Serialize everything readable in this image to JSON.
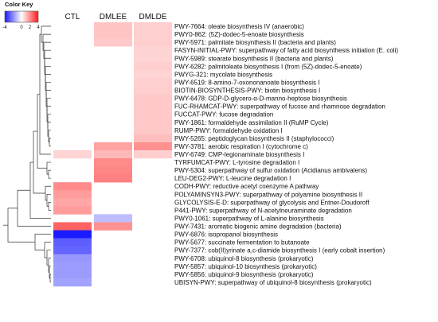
{
  "chart_data": {
    "type": "heatmap",
    "color_key": {
      "title": "Color Key",
      "ticks": [
        "-4",
        "0",
        "2",
        "4"
      ],
      "tick_values": [
        -4,
        0,
        2,
        4
      ],
      "range": [
        -4,
        4
      ],
      "colors": {
        "low": "#1a1aff",
        "mid": "#ffffff",
        "high": "#ff1a1a"
      }
    },
    "columns": [
      "CTL",
      "DMLEE",
      "DMLDE"
    ],
    "rows": [
      "PWY-7664: oleate biosynthesis IV (anaerobic)",
      "PWY0-862: (5Z)-dodec-5-enoate biosynthesis",
      "PWY-5971: palmitate biosynthesis II (bacteria and plants)",
      "FASYN-INITIAL-PWY: superpathway of fatty acid biosynthesis initiation (E. coli)",
      "PWY-5989: stearate biosynthesis II (bacteria and plants)",
      "PWY-6282: palmitoleate biosynthesis I (from (5Z)-dodec-5-enoate)",
      "PWYG-321: mycolate biosynthesis",
      "PWY-6519: 8-amino-7-oxononanoate biosynthesis I",
      "BIOTIN-BIOSYNTHESIS-PWY: biotin biosynthesis I",
      "PWY-6478: GDP-D-glycero-&alpha;-D-manno-heptose biosynthesis",
      "FUC-RHAMCAT-PWY: superpathway of fucose and rhamnose degradation",
      "FUCCAT-PWY: fucose degradation",
      "PWY-1861: formaldehyde assimilation II (RuMP Cycle)",
      "RUMP-PWY: formaldehyde oxidation I",
      "PWY-5265: peptidoglycan biosynthesis II (staphylococci)",
      "PWY-3781: aerobic respiration I (cytochrome c)",
      "PWY-6749: CMP-legionaminate biosynthesis I",
      "TYRFUMCAT-PWY: L-tyrosine degradation I",
      "PWY-5304: superpathway of sulfur oxidation (Acidianus ambivalens)",
      "LEU-DEG2-PWY: L-leucine degradation I",
      "CODH-PWY: reductive acetyl coenzyme A pathway",
      "POLYAMINSYN3-PWY: superpathway of polyamine biosynthesis II",
      "GLYCOLYSIS-E-D: superpathway of glycolysis and Entner-Doudoroff",
      "P441-PWY: superpathway of N-acetylneuraminate degradation",
      "PWY0-1061: superpathway of L-alanine biosynthesis",
      "PWY-7431: aromatic biogenic amine degradation (bacteria)",
      "PWY-6876: isopropanol biosynthesis",
      "PWY-5677: succinate fermentation to butanoate",
      "PWY-7377: cob(II)yrinate a,c-diamide biosynthesis I (early cobalt insertion)",
      "PWY-6708: ubiquinol-8 biosynthesis (prokaryotic)",
      "PWY-5857: ubiquinol-10 biosynthesis (prokaryotic)",
      "PWY-5856: ubiquinol-9 biosynthesis (prokaryotic)",
      "UBISYN-PWY: superpathway of ubiquinol-8 biosynthesis (prokaryotic)"
    ],
    "values": [
      [
        0,
        0.7,
        0.5
      ],
      [
        0,
        0.7,
        0.5
      ],
      [
        0,
        0.6,
        0.5
      ],
      [
        0,
        0,
        0.4
      ],
      [
        0,
        0,
        0.4
      ],
      [
        0,
        0,
        0.5
      ],
      [
        0,
        0,
        0.4
      ],
      [
        0,
        0,
        0.5
      ],
      [
        0,
        0,
        0.5
      ],
      [
        0,
        0,
        0.6
      ],
      [
        0,
        0,
        0.6
      ],
      [
        0,
        0,
        0.6
      ],
      [
        0,
        0,
        0.6
      ],
      [
        0,
        0,
        0.6
      ],
      [
        0,
        0,
        0.8
      ],
      [
        0,
        1.3,
        1.6
      ],
      [
        0.4,
        0.9,
        0.5
      ],
      [
        0,
        1.7,
        0
      ],
      [
        0,
        1.8,
        0
      ],
      [
        0,
        1.9,
        0
      ],
      [
        1.7,
        0,
        0
      ],
      [
        1.4,
        0,
        0
      ],
      [
        1.2,
        0,
        0
      ],
      [
        1.4,
        0,
        0
      ],
      [
        0,
        -0.8,
        0
      ],
      [
        2.4,
        1.6,
        0
      ],
      [
        -3.7,
        0,
        0
      ],
      [
        -2.5,
        0,
        0
      ],
      [
        -2.4,
        0,
        0
      ],
      [
        -1.5,
        0,
        0
      ],
      [
        -1.4,
        0,
        0
      ],
      [
        -1.4,
        0,
        0
      ],
      [
        -1.3,
        0,
        0
      ]
    ]
  }
}
